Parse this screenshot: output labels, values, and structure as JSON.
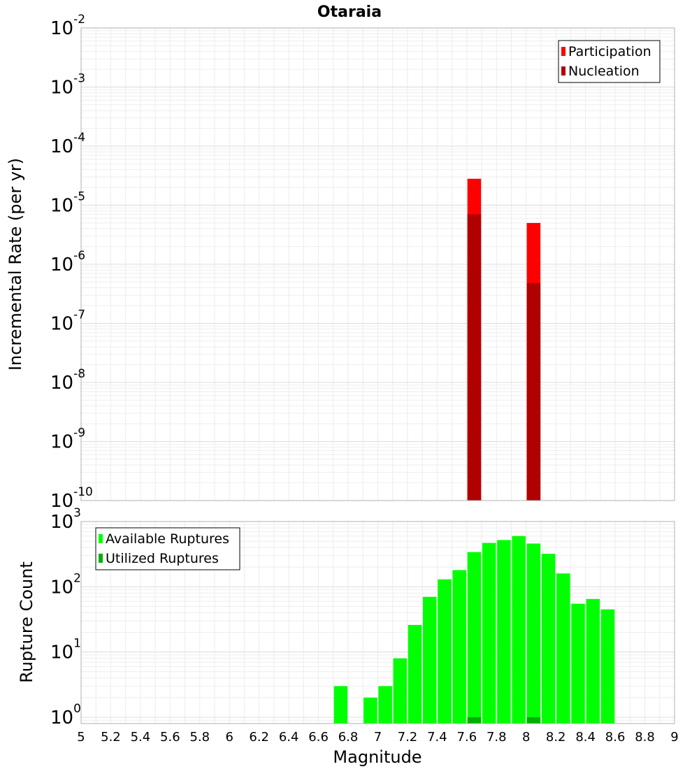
{
  "chart_data": [
    {
      "type": "bar",
      "title": "Otaraia",
      "ylabel": "Incremental Rate (per yr)",
      "xlabel": "",
      "yscale": "log",
      "xlim": [
        5,
        9
      ],
      "ylim": [
        1e-10,
        0.01
      ],
      "ytick_labels": [
        {
          "base": "10",
          "exp": "-10",
          "value": 1e-10
        },
        {
          "base": "10",
          "exp": "-9",
          "value": 1e-09
        },
        {
          "base": "10",
          "exp": "-8",
          "value": 1e-08
        },
        {
          "base": "10",
          "exp": "-7",
          "value": 1e-07
        },
        {
          "base": "10",
          "exp": "-6",
          "value": 1e-06
        },
        {
          "base": "10",
          "exp": "-5",
          "value": 1e-05
        },
        {
          "base": "10",
          "exp": "-4",
          "value": 0.0001
        },
        {
          "base": "10",
          "exp": "-3",
          "value": 0.001
        },
        {
          "base": "10",
          "exp": "-2",
          "value": 0.01
        }
      ],
      "grid": true,
      "legend_placement": "top-right",
      "series": [
        {
          "name": "Participation",
          "color": "#ff0000",
          "x": [
            7.65,
            8.05
          ],
          "values": [
            2.8e-05,
            5e-06
          ]
        },
        {
          "name": "Nucleation",
          "color": "#b00000",
          "x": [
            7.65,
            8.05
          ],
          "values": [
            7e-06,
            4.8e-07
          ]
        }
      ]
    },
    {
      "type": "bar",
      "title": "",
      "ylabel": "Rupture Count",
      "xlabel": "Magnitude",
      "yscale": "log",
      "xlim": [
        5,
        9
      ],
      "ylim": [
        0.8,
        1000
      ],
      "ytick_labels": [
        {
          "base": "10",
          "exp": "0",
          "value": 1
        },
        {
          "base": "10",
          "exp": "1",
          "value": 10
        },
        {
          "base": "10",
          "exp": "2",
          "value": 100
        },
        {
          "base": "10",
          "exp": "3",
          "value": 1000
        }
      ],
      "xtick_labels": [
        "5",
        "5.2",
        "5.4",
        "5.6",
        "5.8",
        "6",
        "6.2",
        "6.4",
        "6.6",
        "6.8",
        "7",
        "7.2",
        "7.4",
        "7.6",
        "7.8",
        "8",
        "8.2",
        "8.4",
        "8.6",
        "8.8",
        "9"
      ],
      "grid": true,
      "legend_placement": "top-left",
      "series": [
        {
          "name": "Available Ruptures",
          "color": "#00ff00",
          "x": [
            6.75,
            6.95,
            7.05,
            7.15,
            7.25,
            7.35,
            7.45,
            7.55,
            7.65,
            7.75,
            7.85,
            7.95,
            8.05,
            8.15,
            8.25,
            8.35,
            8.45,
            8.55
          ],
          "values": [
            3,
            2,
            3,
            8,
            26,
            70,
            130,
            180,
            340,
            470,
            520,
            600,
            460,
            320,
            160,
            55,
            65,
            45
          ]
        },
        {
          "name": "Utilized Ruptures",
          "color": "#00b000",
          "x": [
            7.65,
            8.05
          ],
          "values": [
            1,
            1
          ]
        }
      ]
    }
  ]
}
